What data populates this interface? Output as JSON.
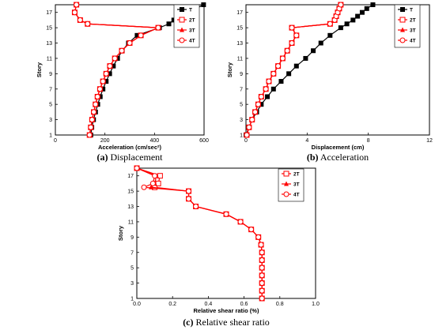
{
  "chart_data": [
    {
      "type": "line",
      "xlabel": "Acceleration (cm/sec²)",
      "ylabel": "Story",
      "xlim": [
        0,
        600
      ],
      "ylim": [
        1,
        18
      ],
      "xticks": [
        "0",
        "200",
        "400",
        "600"
      ],
      "yticks": [
        "1",
        "3",
        "5",
        "7",
        "9",
        "11",
        "13",
        "15",
        "17"
      ],
      "caption": {
        "letter": "(a)",
        "text": " Displacement"
      },
      "y": [
        1,
        2,
        3,
        4,
        5,
        6,
        7,
        8,
        9,
        10,
        11,
        12,
        13,
        14,
        15,
        15.5,
        16,
        17,
        18
      ],
      "series": [
        {
          "name": "T",
          "color": "#000000",
          "marker": "square",
          "values": [
            143,
            147,
            154,
            162,
            171,
            181,
            192,
            205,
            219,
            234,
            251,
            270,
            295,
            330,
            420,
            458,
            478,
            536,
            598
          ]
        },
        {
          "name": "2T",
          "color": "#ff0000",
          "marker": "square-open",
          "values": [
            138,
            143,
            148,
            155,
            162,
            170,
            180,
            192,
            205,
            220,
            240,
            268,
            300,
            345,
            415,
            130,
            100,
            78,
            85
          ]
        },
        {
          "name": "3T",
          "color": "#ff0000",
          "marker": "triangle",
          "values": [
            138,
            143,
            148,
            155,
            162,
            170,
            180,
            192,
            205,
            220,
            240,
            268,
            300,
            345,
            415,
            130,
            100,
            78,
            85
          ]
        },
        {
          "name": "4T",
          "color": "#ff0000",
          "marker": "circle-open",
          "values": [
            138,
            143,
            148,
            155,
            162,
            170,
            180,
            192,
            205,
            220,
            240,
            268,
            300,
            345,
            415,
            130,
            100,
            78,
            85
          ]
        }
      ]
    },
    {
      "type": "line",
      "xlabel": "Displacement (cm)",
      "ylabel": "Story",
      "xlim": [
        0,
        12
      ],
      "ylim": [
        1,
        18
      ],
      "xticks": [
        "0",
        "4",
        "8",
        "12"
      ],
      "yticks": [
        "1",
        "3",
        "5",
        "7",
        "9",
        "11",
        "13",
        "15",
        "17"
      ],
      "caption": {
        "letter": "(b)",
        "text": " Acceleration"
      },
      "y": [
        1,
        2,
        3,
        4,
        5,
        6,
        7,
        8,
        9,
        10,
        11,
        12,
        13,
        14,
        15,
        15.5,
        16,
        16.5,
        17,
        17.5,
        18
      ],
      "series": [
        {
          "name": "T",
          "color": "#000000",
          "marker": "square",
          "values": [
            0.0,
            0.2,
            0.4,
            0.7,
            1.0,
            1.4,
            1.8,
            2.3,
            2.8,
            3.3,
            3.9,
            4.4,
            4.9,
            5.5,
            6.2,
            6.6,
            7.0,
            7.3,
            7.6,
            7.9,
            8.3
          ]
        },
        {
          "name": "2T",
          "color": "#ff0000",
          "marker": "square-open",
          "values": [
            0.05,
            0.2,
            0.4,
            0.6,
            0.8,
            1.0,
            1.3,
            1.5,
            1.8,
            2.1,
            2.4,
            2.7,
            3.0,
            3.3,
            3.0,
            5.5,
            5.8,
            5.9,
            6.0,
            6.1,
            6.2
          ]
        },
        {
          "name": "3T",
          "color": "#ff0000",
          "marker": "triangle",
          "values": [
            0.05,
            0.2,
            0.4,
            0.6,
            0.8,
            1.0,
            1.3,
            1.5,
            1.8,
            2.1,
            2.4,
            2.7,
            3.0,
            3.3,
            3.0,
            5.5,
            5.8,
            5.9,
            6.0,
            6.1,
            6.2
          ]
        },
        {
          "name": "4T",
          "color": "#ff0000",
          "marker": "circle-open",
          "values": [
            0.05,
            0.2,
            0.4,
            0.6,
            0.8,
            1.0,
            1.3,
            1.5,
            1.8,
            2.1,
            2.4,
            2.7,
            3.0,
            3.3,
            3.0,
            5.5,
            5.8,
            5.9,
            6.0,
            6.1,
            6.2
          ]
        }
      ]
    },
    {
      "type": "line",
      "xlabel": "Relative shear ratio (%)",
      "ylabel": "Story",
      "xlim": [
        0.0,
        1.0
      ],
      "ylim": [
        1,
        18
      ],
      "xticks": [
        "0.0",
        "0.2",
        "0.4",
        "0.6",
        "0.8",
        "1.0"
      ],
      "yticks": [
        "1",
        "3",
        "5",
        "7",
        "9",
        "11",
        "13",
        "15",
        "17"
      ],
      "caption": {
        "letter": "(c)",
        "text": " Relative shear ratio"
      },
      "y": [
        1,
        2,
        3,
        4,
        5,
        6,
        7,
        8,
        9,
        10,
        11,
        12,
        13,
        14,
        15,
        15.5,
        16,
        17,
        18
      ],
      "series": [
        {
          "name": "2T",
          "color": "#ff0000",
          "marker": "square-open",
          "values": [
            0.7,
            0.7,
            0.7,
            0.7,
            0.7,
            0.7,
            0.7,
            0.695,
            0.68,
            0.64,
            0.58,
            0.5,
            0.33,
            0.29,
            0.29,
            0.1,
            0.12,
            0.13,
            0.0
          ]
        },
        {
          "name": "3T",
          "color": "#ff0000",
          "marker": "triangle",
          "values": [
            0.7,
            0.7,
            0.7,
            0.7,
            0.7,
            0.7,
            0.7,
            0.695,
            0.68,
            0.64,
            0.58,
            0.5,
            0.33,
            0.29,
            0.29,
            0.08,
            0.1,
            0.11,
            0.0
          ]
        },
        {
          "name": "4T",
          "color": "#ff0000",
          "marker": "circle-open",
          "values": [
            0.7,
            0.7,
            0.7,
            0.7,
            0.7,
            0.7,
            0.7,
            0.695,
            0.68,
            0.64,
            0.58,
            0.5,
            0.33,
            0.29,
            0.29,
            0.04,
            0.09,
            0.1,
            0.0
          ]
        }
      ]
    }
  ]
}
